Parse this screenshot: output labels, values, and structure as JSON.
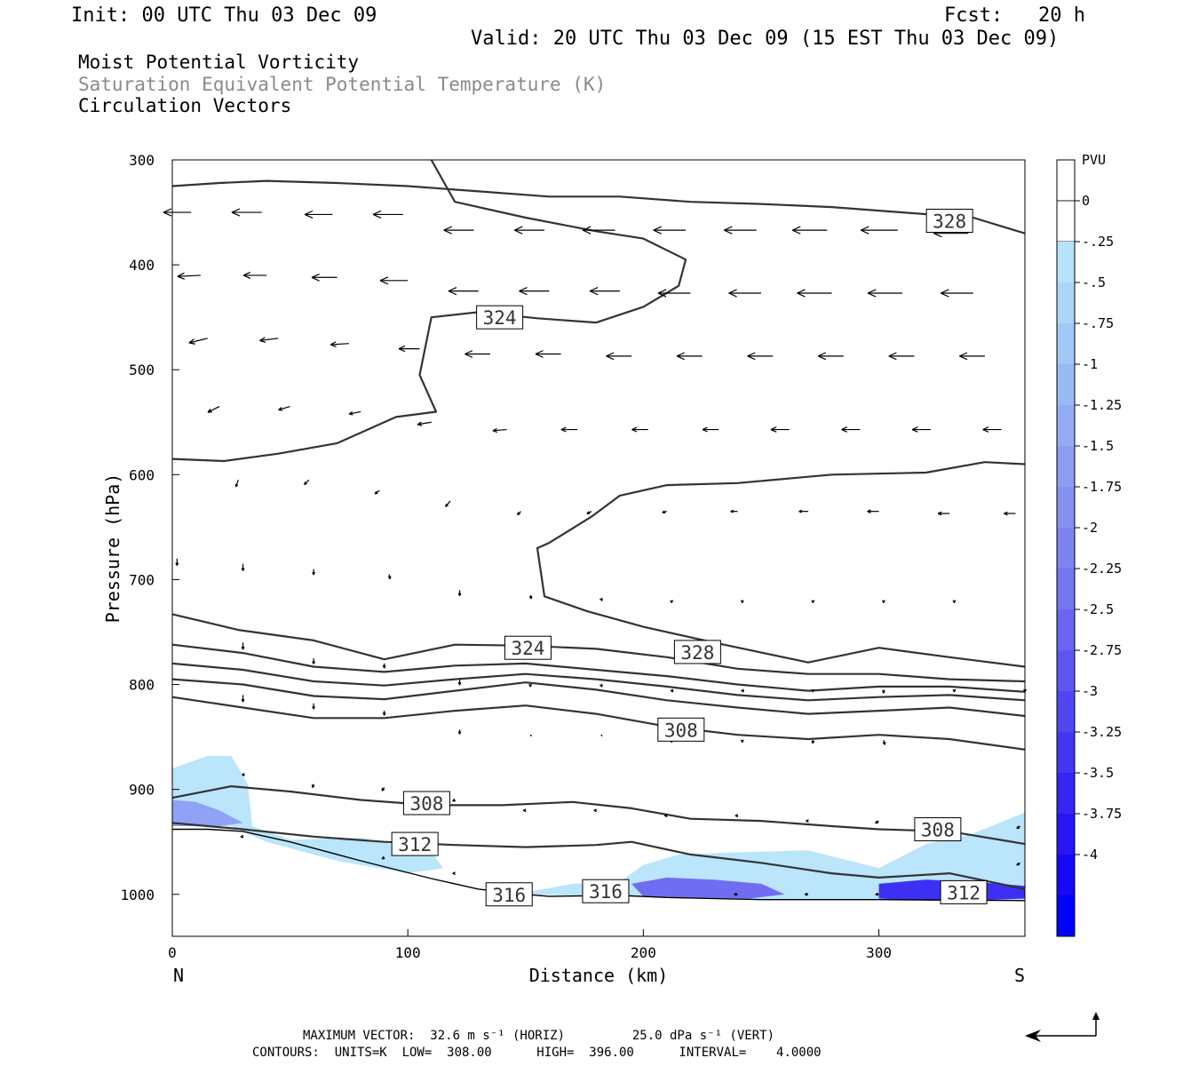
{
  "header": {
    "init": "Init: 00 UTC Thu 03 Dec 09",
    "fcst": "Fcst:   20 h",
    "valid": "Valid: 20 UTC Thu 03 Dec 09 (15 EST Thu 03 Dec 09)"
  },
  "titles": {
    "line1": "Moist Potential Vorticity",
    "line2": "Saturation Equivalent Potential Temperature (K)",
    "line3": "Circulation Vectors"
  },
  "chart_data": {
    "type": "cross-section",
    "xlabel": "Distance (km)",
    "ylabel": "Pressure (hPa)",
    "xlim": [
      0,
      362
    ],
    "ylim": [
      1040,
      300
    ],
    "x_ticks": [
      "0",
      "100",
      "200",
      "300"
    ],
    "y_ticks": [
      "300",
      "400",
      "500",
      "600",
      "700",
      "800",
      "900",
      "1000"
    ],
    "x_end_labels": {
      "left": "N",
      "right": "S"
    },
    "colorbar": {
      "unit": "PVU",
      "labels": [
        "0",
        "-.25",
        "-.5",
        "-.75",
        "-1",
        "-1.25",
        "-1.5",
        "-1.75",
        "-2",
        "-2.25",
        "-2.5",
        "-2.75",
        "-3",
        "-3.25",
        "-3.5",
        "-3.75",
        "-4"
      ],
      "colors": [
        "#ffffff",
        "#b6e4fa",
        "#aad6f8",
        "#a2c8f7",
        "#9abaf6",
        "#93acf5",
        "#8c9ef4",
        "#8590f3",
        "#7e83f2",
        "#7676f2",
        "#6b66f1",
        "#5f56f1",
        "#5146f1",
        "#4436f2",
        "#3626f3",
        "#2816f5",
        "#1808f8"
      ]
    },
    "contour_labels": [
      {
        "text": "328",
        "x": 330,
        "p": 358
      },
      {
        "text": "324",
        "x": 139,
        "p": 450
      },
      {
        "text": "324",
        "x": 151,
        "p": 765
      },
      {
        "text": "328",
        "x": 223,
        "p": 769
      },
      {
        "text": "308",
        "x": 216,
        "p": 843
      },
      {
        "text": "308",
        "x": 108,
        "p": 913
      },
      {
        "text": "312",
        "x": 103,
        "p": 952
      },
      {
        "text": "316",
        "x": 143,
        "p": 1000
      },
      {
        "text": "316",
        "x": 184,
        "p": 997
      },
      {
        "text": "308",
        "x": 325,
        "p": 938
      },
      {
        "text": "312",
        "x": 336,
        "p": 998
      }
    ],
    "theta_contours": [
      {
        "x": [
          0,
          20,
          40,
          70,
          100,
          130,
          160,
          190,
          220,
          250,
          280,
          310,
          340,
          362
        ],
        "p": [
          325,
          322,
          320,
          322,
          325,
          330,
          335,
          335,
          340,
          342,
          345,
          350,
          355,
          370
        ]
      },
      {
        "x": [
          0,
          22,
          45,
          70,
          95,
          112,
          105,
          110,
          130,
          155,
          180,
          200,
          215,
          218,
          200,
          180,
          150,
          120,
          110
        ],
        "p": [
          585,
          587,
          580,
          570,
          545,
          540,
          505,
          450,
          445,
          451,
          455,
          440,
          420,
          395,
          375,
          368,
          355,
          340,
          300
        ]
      },
      {
        "x": [
          362,
          345,
          320,
          280,
          240,
          210,
          190,
          178,
          160,
          155,
          158,
          176,
          200,
          230,
          270,
          300,
          330,
          362
        ],
        "p": [
          590,
          588,
          598,
          600,
          608,
          610,
          620,
          640,
          665,
          670,
          716,
          730,
          745,
          760,
          779,
          765,
          774,
          783
        ]
      },
      {
        "x": [
          0,
          28,
          60,
          90,
          120,
          150,
          180,
          210,
          240,
          270,
          300,
          330,
          362
        ],
        "p": [
          733,
          748,
          758,
          776,
          762,
          763,
          766,
          774,
          785,
          790,
          790,
          795,
          797
        ]
      },
      {
        "x": [
          0,
          30,
          60,
          90,
          120,
          150,
          180,
          210,
          240,
          270,
          300,
          330,
          362
        ],
        "p": [
          762,
          770,
          783,
          788,
          782,
          780,
          786,
          792,
          800,
          806,
          802,
          802,
          807
        ]
      },
      {
        "x": [
          0,
          30,
          60,
          90,
          120,
          150,
          180,
          210,
          240,
          270,
          300,
          330,
          362
        ],
        "p": [
          780,
          786,
          797,
          801,
          795,
          790,
          795,
          802,
          810,
          815,
          812,
          810,
          815
        ]
      },
      {
        "x": [
          0,
          30,
          60,
          90,
          120,
          150,
          180,
          210,
          240,
          270,
          300,
          330,
          362
        ],
        "p": [
          795,
          800,
          811,
          814,
          806,
          798,
          805,
          815,
          822,
          828,
          825,
          822,
          830
        ]
      },
      {
        "x": [
          0,
          30,
          60,
          90,
          120,
          150,
          180,
          210,
          240,
          270,
          300,
          330,
          362
        ],
        "p": [
          812,
          822,
          832,
          832,
          825,
          820,
          828,
          840,
          848,
          852,
          848,
          852,
          862
        ]
      },
      {
        "x": [
          0,
          25,
          50,
          80,
          110,
          140,
          170,
          195,
          220,
          250,
          280,
          300,
          330,
          362
        ],
        "p": [
          908,
          897,
          902,
          910,
          915,
          915,
          912,
          918,
          928,
          930,
          935,
          938,
          940,
          952
        ]
      },
      {
        "x": [
          0,
          30,
          60,
          90,
          120,
          150,
          180,
          195,
          220,
          250,
          280,
          300,
          330,
          362
        ],
        "p": [
          932,
          938,
          945,
          950,
          953,
          955,
          953,
          950,
          962,
          970,
          980,
          984,
          980,
          995
        ]
      }
    ],
    "terrain": {
      "x": [
        0,
        15,
        30,
        50,
        80,
        110,
        130,
        150,
        160,
        190,
        210,
        250,
        300,
        362
      ],
      "p": [
        938,
        938,
        940,
        950,
        968,
        985,
        995,
        1000,
        1002,
        1001,
        1003,
        1005,
        1005,
        1006
      ]
    },
    "mpv_shaded": [
      {
        "level": -0.25,
        "x": [
          0,
          15,
          25,
          32,
          34,
          50,
          80,
          110,
          115,
          100,
          70,
          40,
          25,
          0
        ],
        "p": [
          880,
          868,
          868,
          895,
          935,
          948,
          946,
          960,
          975,
          980,
          968,
          950,
          935,
          935
        ]
      },
      {
        "level": -0.25,
        "x": [
          150,
          170,
          190,
          200,
          215,
          240,
          270,
          300,
          320,
          340,
          362,
          362,
          300,
          250,
          200,
          150
        ],
        "p": [
          998,
          990,
          988,
          972,
          962,
          960,
          958,
          975,
          952,
          942,
          922,
          1005,
          1005,
          1005,
          1003,
          1000
        ]
      },
      {
        "level": -1.5,
        "x": [
          0,
          10,
          20,
          30,
          20,
          0
        ],
        "p": [
          910,
          912,
          920,
          932,
          935,
          935
        ]
      },
      {
        "level": -2.5,
        "x": [
          195,
          210,
          230,
          250,
          260,
          245,
          220,
          200
        ],
        "p": [
          990,
          984,
          986,
          990,
          1000,
          1004,
          1003,
          1002
        ]
      },
      {
        "level": -3.5,
        "x": [
          300,
          320,
          340,
          362,
          362,
          340,
          320,
          300
        ],
        "p": [
          990,
          986,
          988,
          992,
          1004,
          1006,
          1006,
          1004
        ]
      }
    ],
    "vectors": [
      {
        "x": 8,
        "p": 350,
        "u": -24,
        "w": 0
      },
      {
        "x": 38,
        "p": 350,
        "u": -26,
        "w": 0
      },
      {
        "x": 68,
        "p": 352,
        "u": -24,
        "w": 0
      },
      {
        "x": 98,
        "p": 352,
        "u": -26,
        "w": 0
      },
      {
        "x": 128,
        "p": 367,
        "u": -26,
        "w": 0
      },
      {
        "x": 158,
        "p": 367,
        "u": -26,
        "w": 0
      },
      {
        "x": 188,
        "p": 367,
        "u": -28,
        "w": 0
      },
      {
        "x": 218,
        "p": 367,
        "u": -28,
        "w": 0
      },
      {
        "x": 248,
        "p": 367,
        "u": -28,
        "w": 0
      },
      {
        "x": 278,
        "p": 367,
        "u": -30,
        "w": 0
      },
      {
        "x": 308,
        "p": 367,
        "u": -32,
        "w": 0
      },
      {
        "x": 338,
        "p": 370,
        "u": -30,
        "w": 0
      },
      {
        "x": 12,
        "p": 410,
        "u": -20,
        "w": 1
      },
      {
        "x": 40,
        "p": 410,
        "u": -20,
        "w": 0
      },
      {
        "x": 70,
        "p": 412,
        "u": -22,
        "w": 0
      },
      {
        "x": 100,
        "p": 415,
        "u": -24,
        "w": 0
      },
      {
        "x": 130,
        "p": 425,
        "u": -26,
        "w": 0
      },
      {
        "x": 160,
        "p": 425,
        "u": -26,
        "w": 0
      },
      {
        "x": 190,
        "p": 425,
        "u": -26,
        "w": 0
      },
      {
        "x": 220,
        "p": 427,
        "u": -28,
        "w": 0
      },
      {
        "x": 250,
        "p": 427,
        "u": -28,
        "w": 0
      },
      {
        "x": 280,
        "p": 427,
        "u": -30,
        "w": 0
      },
      {
        "x": 310,
        "p": 427,
        "u": -30,
        "w": 0
      },
      {
        "x": 340,
        "p": 427,
        "u": -28,
        "w": 0
      },
      {
        "x": 15,
        "p": 470,
        "u": -16,
        "w": 4
      },
      {
        "x": 45,
        "p": 470,
        "u": -16,
        "w": 2
      },
      {
        "x": 75,
        "p": 475,
        "u": -16,
        "w": 1
      },
      {
        "x": 105,
        "p": 480,
        "u": -18,
        "w": 0
      },
      {
        "x": 135,
        "p": 485,
        "u": -22,
        "w": 0
      },
      {
        "x": 165,
        "p": 485,
        "u": -22,
        "w": 0
      },
      {
        "x": 195,
        "p": 487,
        "u": -22,
        "w": 0
      },
      {
        "x": 225,
        "p": 487,
        "u": -22,
        "w": 0
      },
      {
        "x": 255,
        "p": 487,
        "u": -22,
        "w": 0
      },
      {
        "x": 285,
        "p": 487,
        "u": -22,
        "w": 0
      },
      {
        "x": 315,
        "p": 487,
        "u": -22,
        "w": 0
      },
      {
        "x": 345,
        "p": 487,
        "u": -22,
        "w": 0
      },
      {
        "x": 20,
        "p": 535,
        "u": -10,
        "w": 5
      },
      {
        "x": 50,
        "p": 535,
        "u": -10,
        "w": 3
      },
      {
        "x": 80,
        "p": 540,
        "u": -10,
        "w": 2
      },
      {
        "x": 110,
        "p": 550,
        "u": -12,
        "w": 2
      },
      {
        "x": 142,
        "p": 557,
        "u": -12,
        "w": 1
      },
      {
        "x": 172,
        "p": 557,
        "u": -14,
        "w": 0
      },
      {
        "x": 202,
        "p": 557,
        "u": -14,
        "w": 0
      },
      {
        "x": 232,
        "p": 557,
        "u": -14,
        "w": 0
      },
      {
        "x": 262,
        "p": 557,
        "u": -16,
        "w": 0
      },
      {
        "x": 292,
        "p": 557,
        "u": -16,
        "w": 0
      },
      {
        "x": 322,
        "p": 557,
        "u": -16,
        "w": 0
      },
      {
        "x": 352,
        "p": 557,
        "u": -16,
        "w": 0
      },
      {
        "x": 28,
        "p": 605,
        "u": -2,
        "w": 6
      },
      {
        "x": 58,
        "p": 605,
        "u": -4,
        "w": 4
      },
      {
        "x": 88,
        "p": 615,
        "u": -4,
        "w": 3
      },
      {
        "x": 118,
        "p": 625,
        "u": -4,
        "w": 5
      },
      {
        "x": 148,
        "p": 635,
        "u": -3,
        "w": 3
      },
      {
        "x": 178,
        "p": 635,
        "u": -4,
        "w": 2
      },
      {
        "x": 210,
        "p": 635,
        "u": -4,
        "w": 1
      },
      {
        "x": 240,
        "p": 635,
        "u": -6,
        "w": 0
      },
      {
        "x": 270,
        "p": 635,
        "u": -8,
        "w": 0
      },
      {
        "x": 300,
        "p": 635,
        "u": -10,
        "w": 0
      },
      {
        "x": 330,
        "p": 637,
        "u": -10,
        "w": 0
      },
      {
        "x": 358,
        "p": 637,
        "u": -10,
        "w": 0
      },
      {
        "x": 2,
        "p": 680,
        "u": 0,
        "w": 6
      },
      {
        "x": 30,
        "p": 685,
        "u": 0,
        "w": 6
      },
      {
        "x": 60,
        "p": 690,
        "u": 0,
        "w": 5
      },
      {
        "x": 92,
        "p": 695,
        "u": 1,
        "w": 4
      },
      {
        "x": 122,
        "p": 710,
        "u": 0,
        "w": 5
      },
      {
        "x": 152,
        "p": 715,
        "u": 1,
        "w": 3
      },
      {
        "x": 182,
        "p": 718,
        "u": 1,
        "w": 2
      },
      {
        "x": 212,
        "p": 720,
        "u": 0,
        "w": 2
      },
      {
        "x": 242,
        "p": 720,
        "u": 0,
        "w": 2
      },
      {
        "x": 272,
        "p": 720,
        "u": 0,
        "w": 2
      },
      {
        "x": 302,
        "p": 720,
        "u": 0,
        "w": 2
      },
      {
        "x": 332,
        "p": 720,
        "u": 0,
        "w": 2
      },
      {
        "x": 30,
        "p": 760,
        "u": 0,
        "w": 6
      },
      {
        "x": 60,
        "p": 775,
        "u": 0,
        "w": 5
      },
      {
        "x": 90,
        "p": 780,
        "u": 0,
        "w": 4
      },
      {
        "x": 122,
        "p": 795,
        "u": 0,
        "w": 5
      },
      {
        "x": 152,
        "p": 800,
        "u": 0,
        "w": 2
      },
      {
        "x": 182,
        "p": 800,
        "u": 1,
        "w": 2
      },
      {
        "x": 212,
        "p": 805,
        "u": 1,
        "w": 2
      },
      {
        "x": 242,
        "p": 805,
        "u": 1,
        "w": 2
      },
      {
        "x": 272,
        "p": 805,
        "u": 0,
        "w": 2
      },
      {
        "x": 302,
        "p": 805,
        "u": 0,
        "w": 3
      },
      {
        "x": 332,
        "p": 805,
        "u": 0,
        "w": 2
      },
      {
        "x": 362,
        "p": 805,
        "u": 0,
        "w": 2
      },
      {
        "x": 30,
        "p": 810,
        "u": 0,
        "w": 6
      },
      {
        "x": 60,
        "p": 818,
        "u": 0,
        "w": 5
      },
      {
        "x": 90,
        "p": 825,
        "u": 0,
        "w": 4
      },
      {
        "x": 122,
        "p": 843,
        "u": 0,
        "w": 4
      },
      {
        "x": 152,
        "p": 848,
        "u": 0,
        "w": 1
      },
      {
        "x": 182,
        "p": 848,
        "u": 0,
        "w": 1
      },
      {
        "x": 212,
        "p": 853,
        "u": 0,
        "w": 2
      },
      {
        "x": 242,
        "p": 853,
        "u": 0,
        "w": 2
      },
      {
        "x": 272,
        "p": 853,
        "u": 0,
        "w": 3
      },
      {
        "x": 302,
        "p": 853,
        "u": 1,
        "w": 4
      },
      {
        "x": 30,
        "p": 885,
        "u": 1,
        "w": 2
      },
      {
        "x": 60,
        "p": 895,
        "u": -1,
        "w": 3
      },
      {
        "x": 90,
        "p": 898,
        "u": -2,
        "w": 3
      },
      {
        "x": 120,
        "p": 910,
        "u": -2,
        "w": 1
      },
      {
        "x": 150,
        "p": 920,
        "u": -2,
        "w": 0
      },
      {
        "x": 180,
        "p": 920,
        "u": -2,
        "w": 0
      },
      {
        "x": 210,
        "p": 925,
        "u": -2,
        "w": 0
      },
      {
        "x": 240,
        "p": 925,
        "u": -2,
        "w": 0
      },
      {
        "x": 270,
        "p": 930,
        "u": -2,
        "w": 0
      },
      {
        "x": 300,
        "p": 930,
        "u": -3,
        "w": 2
      },
      {
        "x": 360,
        "p": 935,
        "u": -3,
        "w": 2
      },
      {
        "x": 30,
        "p": 945,
        "u": -2,
        "w": 0
      },
      {
        "x": 90,
        "p": 965,
        "u": -2,
        "w": 1
      },
      {
        "x": 120,
        "p": 980,
        "u": -2,
        "w": 0
      },
      {
        "x": 150,
        "p": 1000,
        "u": -2,
        "w": 0
      },
      {
        "x": 180,
        "p": 1000,
        "u": -2,
        "w": 0
      },
      {
        "x": 240,
        "p": 1000,
        "u": -3,
        "w": 0
      },
      {
        "x": 270,
        "p": 1000,
        "u": -3,
        "w": 0
      },
      {
        "x": 300,
        "p": 1000,
        "u": -3,
        "w": 0
      },
      {
        "x": 360,
        "p": 970,
        "u": -3,
        "w": 2
      }
    ]
  },
  "footer": {
    "max_vector": "MAXIMUM VECTOR:  32.6 m s⁻¹ (HORIZ)         25.0 dPa s⁻¹ (VERT)",
    "contours": "CONTOURS:  UNITS=K  LOW=  308.00      HIGH=  396.00      INTERVAL=    4.0000"
  }
}
